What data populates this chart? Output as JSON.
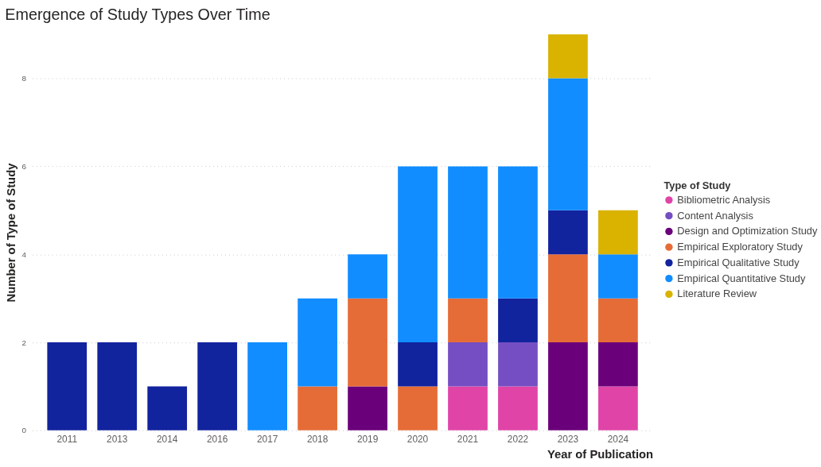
{
  "chart_data": {
    "type": "bar",
    "title": "Emergence of Study Types Over Time",
    "xlabel": "Year of Publication",
    "ylabel": "Number of Type of Study",
    "legend_title": "Type of Study",
    "categories": [
      "2011",
      "2013",
      "2014",
      "2016",
      "2017",
      "2018",
      "2019",
      "2020",
      "2021",
      "2022",
      "2023",
      "2024"
    ],
    "series": [
      {
        "name": "Bibliometric Analysis",
        "color": "#e044a7",
        "values": [
          null,
          null,
          null,
          null,
          null,
          null,
          null,
          null,
          1,
          1,
          null,
          1
        ]
      },
      {
        "name": "Content Analysis",
        "color": "#744ec2",
        "values": [
          null,
          null,
          null,
          null,
          null,
          null,
          null,
          null,
          1,
          1,
          null,
          null
        ]
      },
      {
        "name": "Design and Optimization Study",
        "color": "#6b007b",
        "values": [
          null,
          null,
          null,
          null,
          null,
          null,
          1,
          null,
          null,
          null,
          2,
          1
        ]
      },
      {
        "name": "Empirical Exploratory Study",
        "color": "#e66c37",
        "values": [
          null,
          null,
          null,
          null,
          null,
          1,
          2,
          1,
          1,
          null,
          2,
          1
        ]
      },
      {
        "name": "Empirical Qualitative Study",
        "color": "#12239e",
        "values": [
          2,
          2,
          1,
          2,
          null,
          null,
          null,
          1,
          null,
          1,
          1,
          null
        ]
      },
      {
        "name": "Empirical Quantitative Study",
        "color": "#118dff",
        "values": [
          null,
          null,
          null,
          null,
          2,
          2,
          1,
          4,
          3,
          3,
          3,
          1
        ]
      },
      {
        "name": "Literature Review",
        "color": "#d9b300",
        "values": [
          null,
          null,
          null,
          null,
          null,
          null,
          null,
          null,
          null,
          null,
          1,
          1
        ]
      }
    ],
    "stacked": true,
    "ylim": [
      0,
      9
    ],
    "yticks": [
      0,
      2,
      4,
      6,
      8
    ],
    "grid": "y",
    "legend": "right"
  }
}
